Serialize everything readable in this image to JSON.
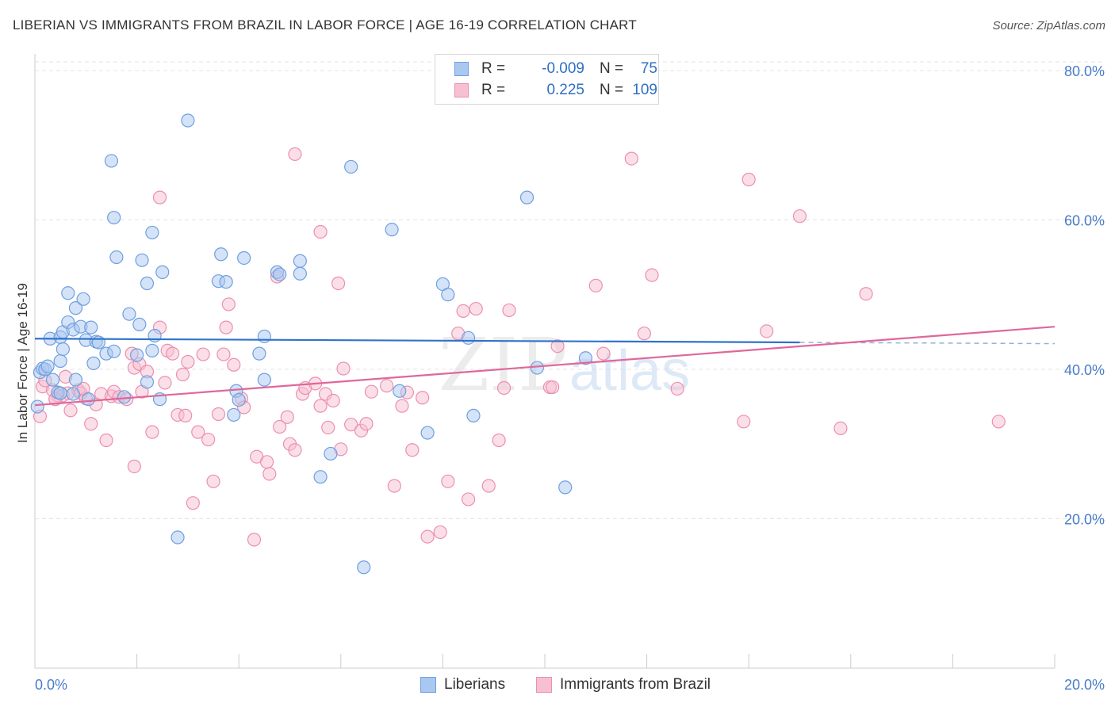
{
  "header": {
    "title": "LIBERIAN VS IMMIGRANTS FROM BRAZIL IN LABOR FORCE | AGE 16-19 CORRELATION CHART",
    "source": "Source: ZipAtlas.com"
  },
  "watermark": {
    "zip": "ZIP",
    "atlas": "atlas"
  },
  "legend": {
    "rows": [
      {
        "r_label": "R =",
        "r_value": "-0.009",
        "n_label": "N =",
        "n_value": "75",
        "color": "#a9c8f0",
        "border": "#6f9fe0"
      },
      {
        "r_label": "R =",
        "r_value": "0.225",
        "n_label": "N =",
        "n_value": "109",
        "color": "#f7c0d2",
        "border": "#ec8fb0"
      }
    ]
  },
  "bottom_legend": {
    "items": [
      {
        "label": "Liberians",
        "color": "#a9c8f0",
        "border": "#6f9fe0"
      },
      {
        "label": "Immigrants from Brazil",
        "color": "#f7c0d2",
        "border": "#ec8fb0"
      }
    ]
  },
  "chart_data": {
    "type": "scatter",
    "title": "LIBERIAN VS IMMIGRANTS FROM BRAZIL IN LABOR FORCE | AGE 16-19 CORRELATION CHART",
    "xlabel": "",
    "ylabel": "In Labor Force | Age 16-19",
    "xlim": [
      0,
      20
    ],
    "ylim": [
      0,
      82
    ],
    "x_tick_labels": [
      "0.0%",
      "20.0%"
    ],
    "y_ticks": [
      20,
      40,
      60,
      80
    ],
    "y_tick_labels": [
      "20.0%",
      "40.0%",
      "60.0%",
      "80.0%"
    ],
    "grid": true,
    "colors": {
      "liberians": "#5b8fd6",
      "brazil": "#e685a6",
      "liberians_line": "#2f73cc",
      "brazil_line": "#e0679a"
    },
    "trend_lines": [
      {
        "series": "Liberians",
        "x": [
          0.0,
          15.0
        ],
        "y": [
          44.1,
          43.6
        ],
        "dashed_extension_to": 20.0
      },
      {
        "series": "Immigrants from Brazil",
        "x": [
          0.0,
          20.0
        ],
        "y": [
          35.2,
          45.7
        ]
      }
    ],
    "series": [
      {
        "name": "Liberians",
        "points": [
          [
            0.1,
            39.6
          ],
          [
            0.15,
            40.1
          ],
          [
            0.2,
            40.0
          ],
          [
            0.25,
            40.4
          ],
          [
            0.35,
            38.6
          ],
          [
            0.3,
            44.1
          ],
          [
            0.45,
            36.9
          ],
          [
            0.5,
            36.8
          ],
          [
            0.5,
            44.3
          ],
          [
            0.55,
            45.0
          ],
          [
            0.5,
            41.1
          ],
          [
            0.55,
            42.7
          ],
          [
            0.65,
            46.3
          ],
          [
            0.65,
            50.2
          ],
          [
            0.75,
            45.3
          ],
          [
            0.8,
            48.2
          ],
          [
            0.75,
            36.7
          ],
          [
            0.8,
            38.6
          ],
          [
            0.9,
            45.7
          ],
          [
            0.95,
            49.4
          ],
          [
            1.05,
            36.0
          ],
          [
            1.0,
            43.9
          ],
          [
            1.1,
            45.6
          ],
          [
            1.15,
            40.8
          ],
          [
            1.2,
            43.7
          ],
          [
            1.25,
            43.6
          ],
          [
            1.4,
            42.1
          ],
          [
            1.55,
            42.4
          ],
          [
            1.75,
            36.3
          ],
          [
            1.85,
            47.4
          ],
          [
            2.0,
            41.9
          ],
          [
            2.05,
            46.0
          ],
          [
            2.2,
            38.3
          ],
          [
            2.3,
            42.5
          ],
          [
            2.35,
            44.5
          ],
          [
            2.45,
            36.0
          ],
          [
            2.5,
            53.0
          ],
          [
            1.6,
            55.0
          ],
          [
            2.1,
            54.6
          ],
          [
            2.2,
            51.5
          ],
          [
            2.3,
            58.3
          ],
          [
            1.55,
            60.3
          ],
          [
            1.5,
            67.9
          ],
          [
            3.0,
            73.3
          ],
          [
            3.6,
            51.8
          ],
          [
            3.65,
            55.4
          ],
          [
            3.75,
            51.7
          ],
          [
            3.9,
            33.9
          ],
          [
            3.95,
            37.1
          ],
          [
            4.0,
            35.9
          ],
          [
            4.1,
            54.9
          ],
          [
            4.4,
            42.1
          ],
          [
            4.5,
            44.4
          ],
          [
            4.75,
            53.0
          ],
          [
            4.8,
            52.7
          ],
          [
            5.2,
            54.5
          ],
          [
            5.2,
            52.8
          ],
          [
            5.8,
            28.7
          ],
          [
            5.6,
            25.6
          ],
          [
            6.2,
            67.1
          ],
          [
            6.45,
            13.5
          ],
          [
            7.0,
            58.7
          ],
          [
            7.15,
            37.1
          ],
          [
            7.7,
            31.5
          ],
          [
            8.0,
            51.4
          ],
          [
            8.1,
            50.0
          ],
          [
            8.6,
            33.8
          ],
          [
            8.5,
            44.2
          ],
          [
            9.65,
            63.0
          ],
          [
            9.85,
            40.2
          ],
          [
            10.4,
            24.2
          ],
          [
            10.8,
            41.5
          ],
          [
            2.8,
            17.5
          ],
          [
            0.05,
            35.0
          ],
          [
            4.5,
            38.6
          ]
        ]
      },
      {
        "name": "Immigrants from Brazil",
        "points": [
          [
            0.1,
            33.7
          ],
          [
            0.15,
            37.7
          ],
          [
            0.2,
            38.5
          ],
          [
            0.35,
            37.2
          ],
          [
            0.4,
            36.0
          ],
          [
            0.45,
            36.5
          ],
          [
            0.55,
            36.5
          ],
          [
            0.6,
            39.0
          ],
          [
            0.7,
            34.5
          ],
          [
            0.85,
            37.2
          ],
          [
            0.9,
            36.8
          ],
          [
            1.0,
            36.1
          ],
          [
            1.1,
            32.7
          ],
          [
            1.2,
            35.3
          ],
          [
            1.3,
            36.7
          ],
          [
            1.4,
            30.5
          ],
          [
            1.5,
            36.4
          ],
          [
            1.55,
            37.0
          ],
          [
            1.65,
            36.3
          ],
          [
            1.8,
            36.0
          ],
          [
            1.9,
            42.1
          ],
          [
            1.95,
            40.2
          ],
          [
            2.05,
            40.7
          ],
          [
            2.1,
            37.0
          ],
          [
            2.2,
            39.7
          ],
          [
            2.3,
            31.6
          ],
          [
            2.45,
            45.6
          ],
          [
            2.6,
            42.5
          ],
          [
            2.7,
            42.1
          ],
          [
            2.8,
            33.9
          ],
          [
            2.9,
            39.3
          ],
          [
            3.0,
            41.0
          ],
          [
            3.2,
            31.6
          ],
          [
            3.3,
            42.0
          ],
          [
            3.4,
            30.6
          ],
          [
            3.5,
            25.0
          ],
          [
            3.6,
            34.0
          ],
          [
            3.7,
            42.0
          ],
          [
            3.75,
            45.6
          ],
          [
            3.8,
            48.7
          ],
          [
            3.9,
            40.6
          ],
          [
            4.05,
            36.1
          ],
          [
            4.1,
            34.9
          ],
          [
            4.3,
            17.2
          ],
          [
            4.35,
            28.3
          ],
          [
            4.55,
            27.6
          ],
          [
            4.6,
            26.0
          ],
          [
            4.8,
            32.3
          ],
          [
            4.95,
            33.6
          ],
          [
            5.0,
            30.0
          ],
          [
            5.1,
            29.2
          ],
          [
            5.25,
            36.7
          ],
          [
            5.3,
            37.5
          ],
          [
            5.5,
            38.1
          ],
          [
            5.6,
            35.1
          ],
          [
            5.7,
            36.7
          ],
          [
            5.75,
            32.2
          ],
          [
            5.85,
            35.8
          ],
          [
            6.0,
            29.3
          ],
          [
            6.05,
            40.1
          ],
          [
            6.2,
            32.6
          ],
          [
            6.4,
            31.8
          ],
          [
            6.5,
            32.7
          ],
          [
            6.6,
            37.0
          ],
          [
            6.9,
            37.8
          ],
          [
            7.05,
            24.4
          ],
          [
            7.2,
            35.1
          ],
          [
            7.3,
            36.9
          ],
          [
            7.4,
            29.2
          ],
          [
            7.6,
            36.2
          ],
          [
            7.7,
            17.6
          ],
          [
            7.95,
            18.2
          ],
          [
            8.1,
            25.0
          ],
          [
            8.3,
            44.8
          ],
          [
            8.4,
            47.8
          ],
          [
            8.5,
            22.6
          ],
          [
            8.65,
            48.1
          ],
          [
            8.9,
            24.4
          ],
          [
            9.1,
            30.5
          ],
          [
            9.2,
            37.5
          ],
          [
            9.3,
            47.9
          ],
          [
            10.1,
            37.6
          ],
          [
            10.15,
            37.6
          ],
          [
            10.25,
            43.1
          ],
          [
            11.0,
            51.2
          ],
          [
            11.15,
            42.1
          ],
          [
            11.7,
            68.2
          ],
          [
            11.95,
            44.8
          ],
          [
            12.1,
            52.6
          ],
          [
            12.6,
            37.4
          ],
          [
            13.9,
            33.0
          ],
          [
            14.0,
            65.4
          ],
          [
            14.35,
            45.1
          ],
          [
            15.0,
            60.5
          ],
          [
            15.8,
            32.1
          ],
          [
            16.3,
            50.1
          ],
          [
            18.9,
            33.0
          ],
          [
            2.45,
            63.0
          ],
          [
            5.1,
            68.8
          ],
          [
            5.6,
            58.4
          ],
          [
            5.95,
            51.5
          ],
          [
            3.1,
            22.1
          ],
          [
            4.75,
            52.4
          ],
          [
            1.95,
            27.0
          ],
          [
            2.95,
            33.8
          ],
          [
            0.4,
            36.0
          ],
          [
            0.65,
            36.8
          ],
          [
            0.95,
            37.4
          ],
          [
            2.55,
            38.2
          ]
        ]
      }
    ]
  }
}
